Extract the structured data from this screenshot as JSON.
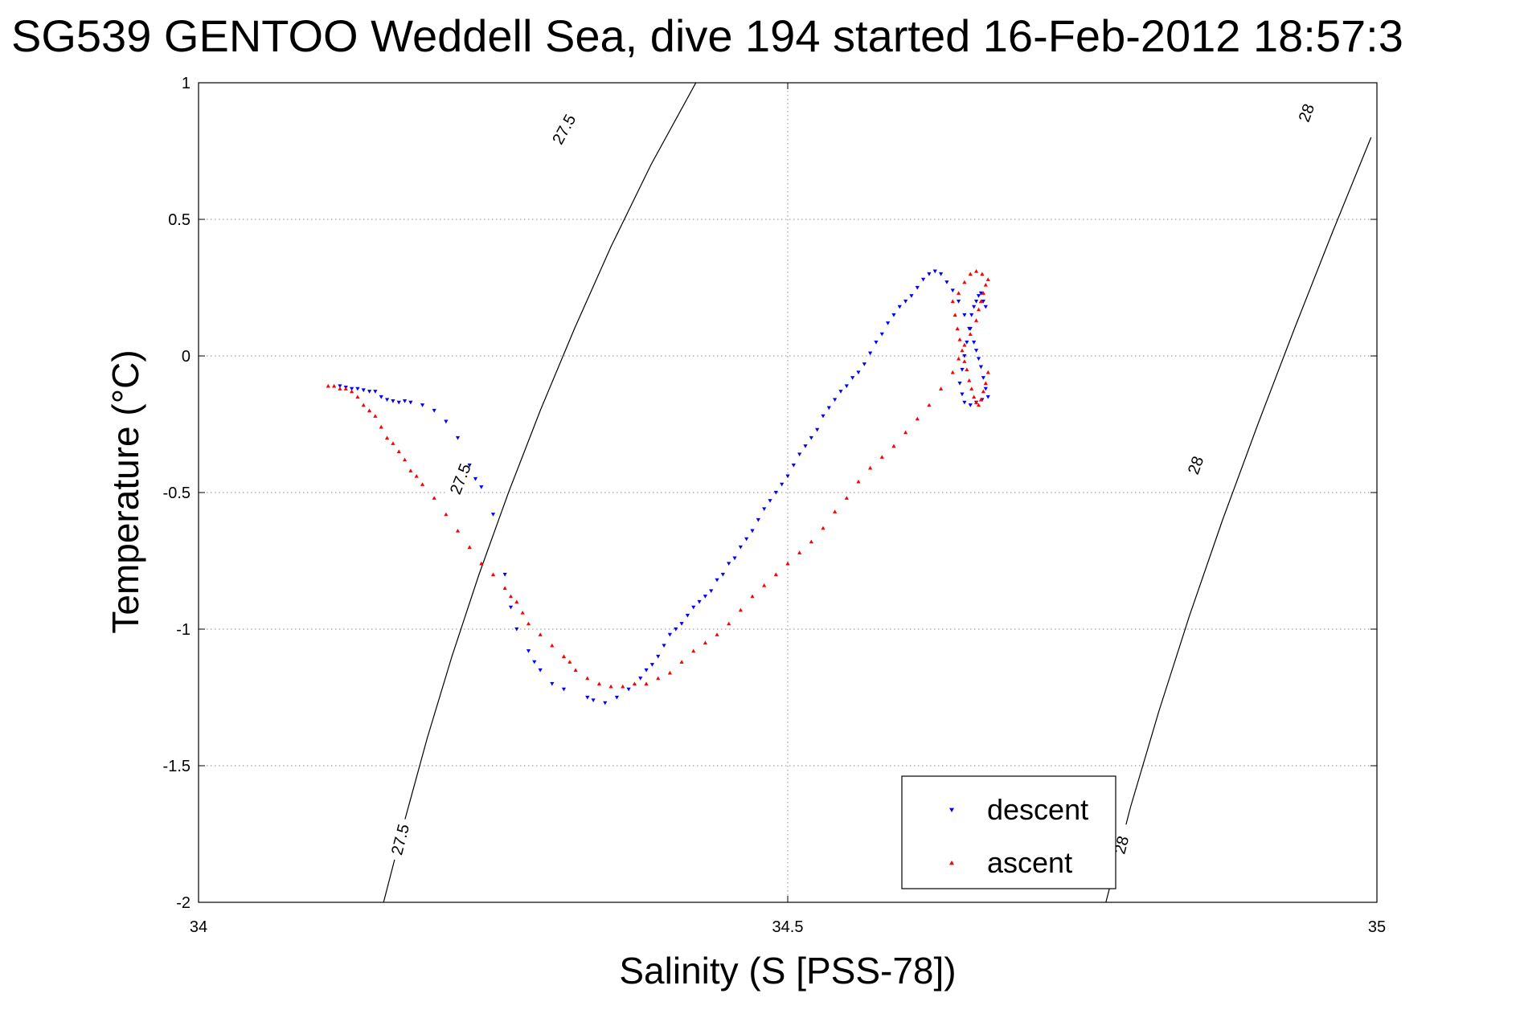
{
  "chart_data": {
    "type": "scatter",
    "title": "SG539 GENTOO Weddell Sea, dive 194 started 16-Feb-2012 18:57:3",
    "xlabel": "Salinity (S [PSS-78])",
    "ylabel": "Temperature (°C)",
    "xlim": [
      34,
      35
    ],
    "ylim": [
      -2,
      1
    ],
    "xticks": [
      34,
      34.5,
      35
    ],
    "xtick_labels": [
      "34",
      "34.5",
      "35"
    ],
    "yticks": [
      1,
      0.5,
      0,
      -0.5,
      -1,
      -1.5,
      -2
    ],
    "ytick_labels": [
      "1",
      "0.5",
      "0",
      "-0.5",
      "-1",
      "-1.5",
      "-2"
    ],
    "grid": true,
    "legend": {
      "position": "bottom-right",
      "entries": [
        {
          "name": "descent",
          "color": "#0000ff",
          "marker": "triangle-down"
        },
        {
          "name": "ascent",
          "color": "#ff0000",
          "marker": "triangle-up"
        }
      ]
    },
    "contours": [
      {
        "level": "27.5",
        "x": [
          34.157,
          34.175,
          34.194,
          34.215,
          34.238,
          34.263,
          34.29,
          34.319,
          34.35,
          34.384,
          34.422
        ],
        "y": [
          -2.0,
          -1.7,
          -1.4,
          -1.1,
          -0.8,
          -0.5,
          -0.2,
          0.1,
          0.4,
          0.7,
          1.0
        ],
        "label_positions": [
          [
            34.171,
            -1.77
          ],
          [
            34.222,
            -0.45
          ],
          [
            34.31,
            0.83
          ]
        ]
      },
      {
        "level": "28",
        "x": [
          34.77,
          34.791,
          34.815,
          34.841,
          34.869,
          34.899,
          34.93,
          34.962,
          34.995
        ],
        "y": [
          -2.0,
          -1.65,
          -1.3,
          -0.95,
          -0.6,
          -0.25,
          0.1,
          0.45,
          0.8
        ],
        "label_positions": [
          [
            34.783,
            -1.79
          ],
          [
            34.846,
            -0.4
          ],
          [
            34.94,
            0.89
          ]
        ]
      }
    ],
    "series": [
      {
        "name": "descent",
        "color": "#0000ff",
        "marker": "triangle-down",
        "x": [
          34.12,
          34.125,
          34.13,
          34.135,
          34.14,
          34.145,
          34.15,
          34.155,
          34.16,
          34.165,
          34.17,
          34.175,
          34.18,
          34.19,
          34.2,
          34.21,
          34.22,
          34.23,
          34.235,
          34.24,
          34.25,
          34.26,
          34.265,
          34.27,
          34.28,
          34.285,
          34.29,
          34.3,
          34.31,
          34.33,
          34.335,
          34.345,
          34.355,
          34.365,
          34.375,
          34.38,
          34.385,
          34.39,
          34.395,
          34.4,
          34.405,
          34.41,
          34.415,
          34.42,
          34.425,
          34.43,
          34.435,
          34.44,
          34.445,
          34.45,
          34.455,
          34.46,
          34.465,
          34.47,
          34.475,
          34.48,
          34.485,
          34.49,
          34.495,
          34.5,
          34.505,
          34.51,
          34.515,
          34.52,
          34.525,
          34.53,
          34.535,
          34.54,
          34.545,
          34.55,
          34.555,
          34.56,
          34.565,
          34.57,
          34.575,
          34.58,
          34.585,
          34.59,
          34.595,
          34.6,
          34.605,
          34.61,
          34.615,
          34.62,
          34.625,
          34.63,
          34.635,
          34.64,
          34.645,
          34.65,
          34.655,
          34.658,
          34.66,
          34.662,
          34.664,
          34.666,
          34.668,
          34.67,
          34.665,
          34.66,
          34.655,
          34.65,
          34.648,
          34.646,
          34.648,
          34.65,
          34.652,
          34.654,
          34.656,
          34.658,
          34.66,
          34.662,
          34.664,
          34.666,
          34.668
        ],
        "y": [
          -0.11,
          -0.115,
          -0.12,
          -0.12,
          -0.125,
          -0.13,
          -0.13,
          -0.15,
          -0.16,
          -0.165,
          -0.17,
          -0.165,
          -0.17,
          -0.18,
          -0.2,
          -0.24,
          -0.3,
          -0.4,
          -0.45,
          -0.48,
          -0.58,
          -0.8,
          -0.92,
          -1.0,
          -1.08,
          -1.12,
          -1.15,
          -1.2,
          -1.22,
          -1.25,
          -1.26,
          -1.27,
          -1.25,
          -1.22,
          -1.18,
          -1.15,
          -1.13,
          -1.1,
          -1.06,
          -1.02,
          -1.0,
          -0.98,
          -0.95,
          -0.92,
          -0.9,
          -0.88,
          -0.86,
          -0.82,
          -0.8,
          -0.76,
          -0.74,
          -0.7,
          -0.67,
          -0.64,
          -0.6,
          -0.56,
          -0.53,
          -0.5,
          -0.47,
          -0.44,
          -0.4,
          -0.36,
          -0.33,
          -0.3,
          -0.27,
          -0.22,
          -0.19,
          -0.16,
          -0.13,
          -0.11,
          -0.08,
          -0.06,
          -0.03,
          0.01,
          0.05,
          0.08,
          0.12,
          0.15,
          0.18,
          0.2,
          0.22,
          0.25,
          0.28,
          0.3,
          0.31,
          0.3,
          0.27,
          0.24,
          0.2,
          0.15,
          0.1,
          0.05,
          0.02,
          -0.01,
          -0.04,
          -0.08,
          -0.12,
          -0.15,
          -0.16,
          -0.17,
          -0.18,
          -0.17,
          -0.14,
          -0.1,
          -0.05,
          0.0,
          0.05,
          0.1,
          0.15,
          0.18,
          0.2,
          0.22,
          0.23,
          0.2,
          0.18
        ]
      },
      {
        "name": "ascent",
        "color": "#ff0000",
        "marker": "triangle-up",
        "x": [
          34.11,
          34.115,
          34.12,
          34.125,
          34.13,
          34.135,
          34.14,
          34.145,
          34.15,
          34.155,
          34.16,
          34.165,
          34.17,
          34.175,
          34.18,
          34.185,
          34.19,
          34.2,
          34.21,
          34.22,
          34.23,
          34.24,
          34.25,
          34.26,
          34.265,
          34.27,
          34.275,
          34.28,
          34.29,
          34.3,
          34.31,
          34.315,
          34.32,
          34.33,
          34.34,
          34.35,
          34.36,
          34.37,
          34.38,
          34.39,
          34.4,
          34.41,
          34.42,
          34.43,
          34.44,
          34.45,
          34.46,
          34.47,
          34.48,
          34.49,
          34.5,
          34.51,
          34.52,
          34.53,
          34.54,
          34.55,
          34.56,
          34.57,
          34.58,
          34.59,
          34.6,
          34.61,
          34.62,
          34.63,
          34.64,
          34.645,
          34.65,
          34.655,
          34.66,
          34.662,
          34.664,
          34.666,
          34.668,
          34.67,
          34.665,
          34.66,
          34.655,
          34.65,
          34.645,
          34.64,
          34.642,
          34.644,
          34.646,
          34.648,
          34.65,
          34.652,
          34.654,
          34.656,
          34.658,
          34.66,
          34.662,
          34.664,
          34.666,
          34.668,
          34.67
        ],
        "y": [
          -0.11,
          -0.11,
          -0.12,
          -0.12,
          -0.13,
          -0.15,
          -0.18,
          -0.2,
          -0.22,
          -0.26,
          -0.3,
          -0.32,
          -0.35,
          -0.38,
          -0.42,
          -0.44,
          -0.47,
          -0.52,
          -0.58,
          -0.64,
          -0.7,
          -0.76,
          -0.8,
          -0.85,
          -0.88,
          -0.9,
          -0.94,
          -0.98,
          -1.02,
          -1.06,
          -1.1,
          -1.12,
          -1.15,
          -1.18,
          -1.2,
          -1.21,
          -1.21,
          -1.2,
          -1.2,
          -1.18,
          -1.16,
          -1.12,
          -1.08,
          -1.05,
          -1.02,
          -0.98,
          -0.93,
          -0.88,
          -0.84,
          -0.8,
          -0.76,
          -0.72,
          -0.68,
          -0.63,
          -0.57,
          -0.52,
          -0.46,
          -0.41,
          -0.37,
          -0.33,
          -0.28,
          -0.23,
          -0.18,
          -0.12,
          -0.06,
          -0.01,
          0.04,
          0.08,
          0.13,
          0.17,
          0.2,
          0.23,
          0.26,
          0.28,
          0.3,
          0.31,
          0.3,
          0.27,
          0.23,
          0.2,
          0.15,
          0.1,
          0.06,
          0.02,
          -0.02,
          -0.05,
          -0.09,
          -0.12,
          -0.15,
          -0.17,
          -0.18,
          -0.16,
          -0.13,
          -0.1,
          -0.06
        ]
      }
    ]
  }
}
